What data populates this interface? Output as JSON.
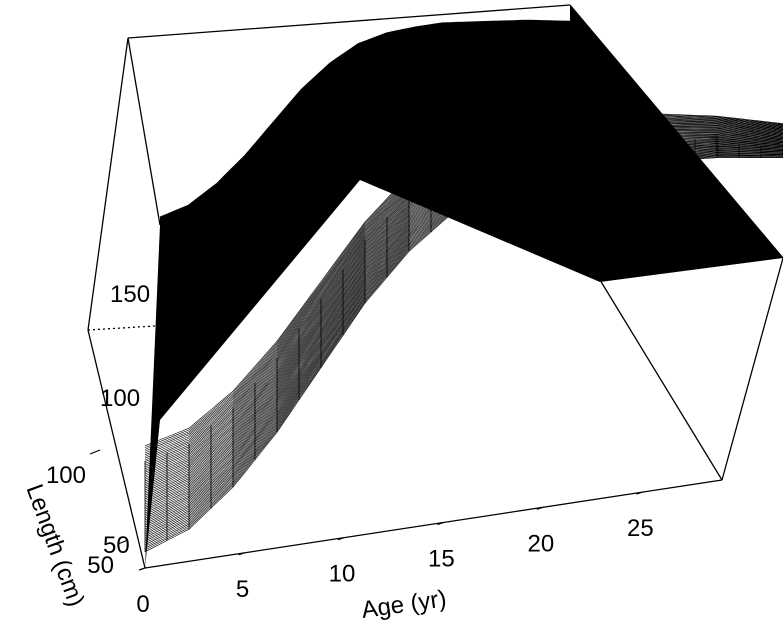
{
  "chart_data": {
    "type": "surface",
    "xlabel": "Age (yr)",
    "zlabel": "Length (cm)",
    "x_ticks": [
      "0",
      "5",
      "10",
      "15",
      "20",
      "25"
    ],
    "z_ticks": [
      "50",
      "100"
    ],
    "y_ticks": [
      "50",
      "100",
      "150"
    ],
    "xlim": [
      0,
      29
    ],
    "zlim": [
      50,
      180
    ],
    "surface_profile": {
      "age": [
        0,
        2,
        4,
        6,
        8,
        10,
        12,
        14,
        16,
        18,
        20,
        22,
        24,
        26,
        29
      ],
      "length": [
        55,
        62,
        75,
        92,
        112,
        132,
        148,
        160,
        167,
        171,
        174,
        175,
        176,
        177,
        177
      ]
    },
    "wire_color": "#000000"
  }
}
